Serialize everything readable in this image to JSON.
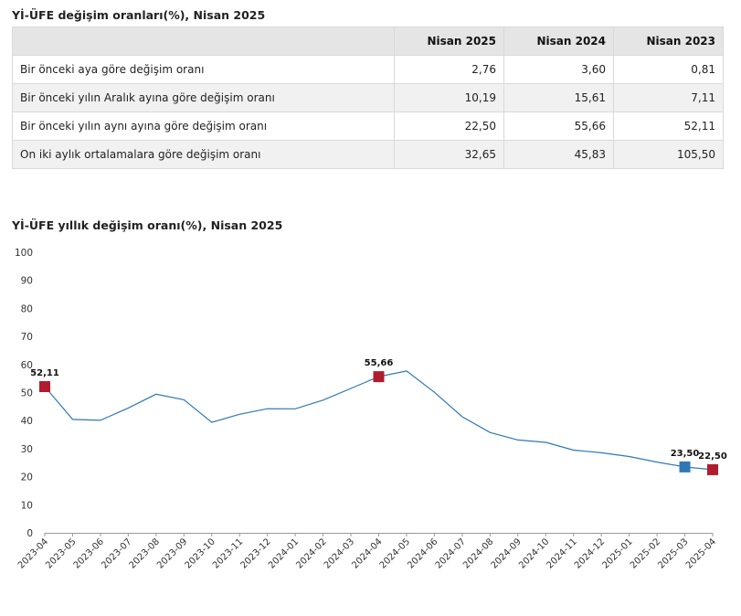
{
  "table": {
    "title": "Yİ-ÜFE değişim oranları(%), Nisan 2025",
    "headers": [
      "",
      "Nisan 2025",
      "Nisan 2024",
      "Nisan 2023"
    ],
    "rows": [
      {
        "label": "Bir önceki aya göre değişim oranı",
        "values": [
          "2,76",
          "3,60",
          "0,81"
        ]
      },
      {
        "label": "Bir önceki yılın Aralık ayına göre değişim oranı",
        "values": [
          "10,19",
          "15,61",
          "7,11"
        ]
      },
      {
        "label": "Bir önceki yılın aynı ayına göre değişim oranı",
        "values": [
          "22,50",
          "55,66",
          "52,11"
        ]
      },
      {
        "label": "On iki aylık ortalamalara göre değişim oranı",
        "values": [
          "32,65",
          "45,83",
          "105,50"
        ]
      }
    ]
  },
  "chart_data": {
    "type": "line",
    "title": "Yİ-ÜFE yıllık değişim oranı(%), Nisan 2025",
    "xlabel": "",
    "ylabel": "",
    "ylim": [
      0,
      100
    ],
    "yticks": [
      "0",
      "10",
      "20",
      "30",
      "40",
      "50",
      "60",
      "70",
      "80",
      "90",
      "100"
    ],
    "grid": false,
    "categories": [
      "2023-04",
      "2023-05",
      "2023-06",
      "2023-07",
      "2023-08",
      "2023-09",
      "2023-10",
      "2023-11",
      "2023-12",
      "2024-01",
      "2024-02",
      "2024-03",
      "2024-04",
      "2024-05",
      "2024-06",
      "2024-07",
      "2024-08",
      "2024-09",
      "2024-10",
      "2024-11",
      "2024-12",
      "2025-01",
      "2025-02",
      "2025-03",
      "2025-04"
    ],
    "series": [
      {
        "values": [
          52.11,
          40.42,
          40.09,
          44.5,
          49.41,
          47.44,
          39.39,
          42.25,
          44.22,
          44.2,
          47.29,
          51.47,
          55.66,
          57.68,
          50.09,
          41.37,
          35.75,
          33.09,
          32.24,
          29.47,
          28.52,
          27.2,
          25.21,
          23.5,
          22.5
        ],
        "color": "#2f78b7"
      }
    ],
    "highlights": [
      {
        "index": 0,
        "label": "52,11",
        "color": "#b01c2e"
      },
      {
        "index": 12,
        "label": "55,66",
        "color": "#b01c2e"
      },
      {
        "index": 23,
        "label": "23,50",
        "color": "#2f78b7"
      },
      {
        "index": 24,
        "label": "22,50",
        "color": "#b01c2e"
      }
    ]
  }
}
